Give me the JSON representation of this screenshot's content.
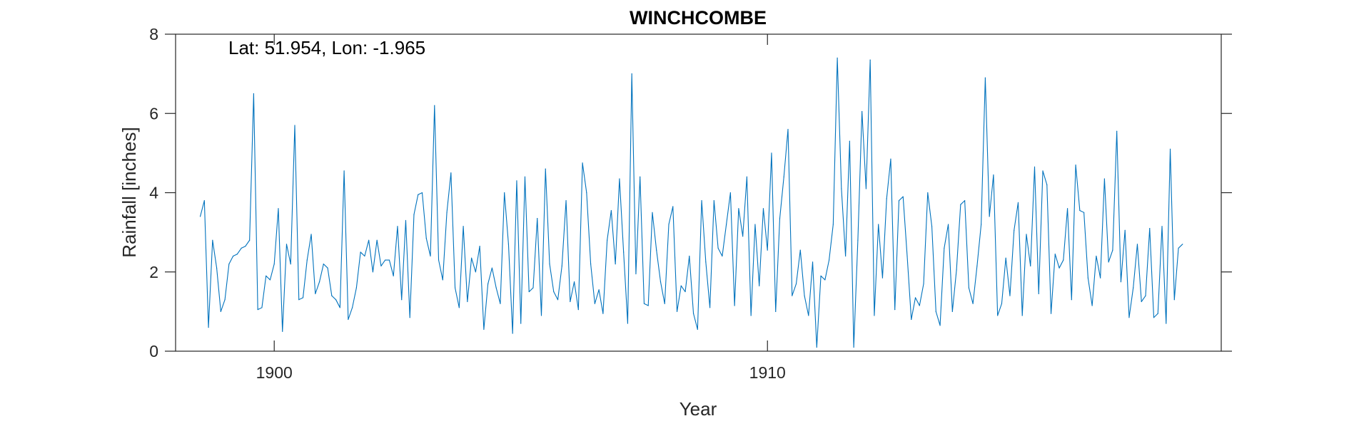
{
  "chart_data": {
    "type": "line",
    "title": "WINCHCOMBE",
    "annotation": "Lat: 51.954, Lon: -1.965",
    "xlabel": "Year",
    "ylabel": "Rainfall [inches]",
    "xlim": [
      1898.0,
      1919.2
    ],
    "ylim": [
      0,
      8
    ],
    "xticks": [
      1900,
      1910
    ],
    "yticks": [
      0,
      2,
      4,
      6,
      8
    ],
    "grid": false,
    "line_color": "#0072BD",
    "series": [
      {
        "start_year": 1898.5,
        "step_years": 0.08333,
        "values": [
          3.4,
          3.8,
          0.6,
          2.8,
          2.1,
          1.0,
          1.3,
          2.2,
          2.4,
          2.45,
          2.6,
          2.65,
          2.8,
          6.5,
          1.05,
          1.1,
          1.9,
          1.8,
          2.2,
          3.6,
          0.5,
          2.7,
          2.2,
          5.7,
          1.3,
          1.35,
          2.3,
          2.95,
          1.45,
          1.75,
          2.2,
          2.1,
          1.4,
          1.3,
          1.1,
          4.55,
          0.8,
          1.1,
          1.6,
          2.5,
          2.4,
          2.8,
          2.0,
          2.8,
          2.15,
          2.3,
          2.3,
          1.9,
          3.15,
          1.3,
          3.3,
          0.85,
          3.45,
          3.95,
          4.0,
          2.85,
          2.4,
          6.2,
          2.3,
          1.8,
          3.5,
          4.5,
          1.6,
          1.1,
          3.15,
          1.25,
          2.35,
          2.0,
          2.65,
          0.55,
          1.7,
          2.1,
          1.6,
          1.2,
          4.0,
          2.7,
          0.45,
          4.3,
          0.7,
          4.4,
          1.5,
          1.6,
          3.35,
          0.9,
          4.6,
          2.2,
          1.5,
          1.3,
          2.15,
          3.8,
          1.25,
          1.75,
          1.05,
          4.75,
          4.0,
          2.2,
          1.2,
          1.55,
          0.95,
          2.8,
          3.55,
          2.2,
          4.35,
          2.5,
          0.7,
          7.0,
          1.95,
          4.4,
          1.2,
          1.15,
          3.5,
          2.55,
          1.75,
          1.2,
          3.2,
          3.65,
          1.0,
          1.65,
          1.5,
          2.4,
          0.95,
          0.55,
          3.8,
          2.25,
          1.1,
          3.8,
          2.6,
          2.4,
          3.2,
          4.0,
          1.15,
          3.6,
          2.9,
          4.4,
          0.9,
          3.2,
          1.65,
          3.6,
          2.55,
          5.0,
          1.0,
          3.35,
          4.4,
          5.6,
          1.4,
          1.7,
          2.55,
          1.4,
          0.9,
          2.25,
          0.1,
          1.9,
          1.8,
          2.3,
          3.2,
          7.4,
          4.1,
          2.4,
          5.3,
          0.1,
          2.8,
          6.05,
          4.1,
          7.35,
          0.9,
          3.2,
          1.85,
          3.85,
          4.85,
          1.05,
          3.8,
          3.9,
          2.4,
          0.8,
          1.35,
          1.15,
          1.7,
          4.0,
          3.15,
          1.0,
          0.65,
          2.6,
          3.2,
          1.0,
          2.05,
          3.7,
          3.8,
          1.6,
          1.2,
          2.15,
          3.2,
          6.9,
          3.4,
          4.45,
          0.9,
          1.2,
          2.35,
          1.4,
          3.05,
          3.75,
          0.9,
          2.95,
          2.15,
          4.65,
          1.45,
          4.55,
          4.2,
          0.95,
          2.45,
          2.1,
          2.3,
          3.6,
          1.3,
          4.7,
          3.55,
          3.5,
          1.85,
          1.15,
          2.4,
          1.85,
          4.35,
          2.25,
          2.55,
          5.55,
          1.75,
          3.05,
          0.85,
          1.6,
          2.7,
          1.25,
          1.4,
          3.1,
          0.85,
          0.95,
          3.15,
          0.7,
          5.1,
          1.3,
          2.6,
          2.7
        ]
      }
    ]
  }
}
